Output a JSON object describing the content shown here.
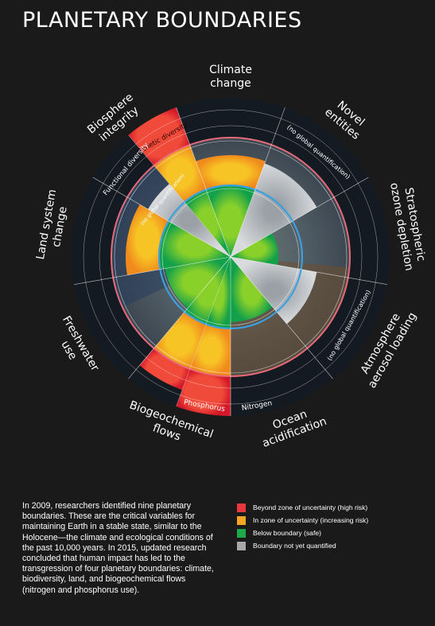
{
  "title": "PLANETARY BOUNDARIES",
  "boundaries": [
    {
      "id": "climate",
      "label_lines": [
        "Climate",
        "change"
      ]
    },
    {
      "id": "novel",
      "label_lines": [
        "Novel",
        "entities"
      ],
      "note": "(no global quantification)"
    },
    {
      "id": "ozone",
      "label_lines": [
        "Stratospheric",
        "ozone depletion"
      ]
    },
    {
      "id": "aerosol",
      "label_lines": [
        "Atmosphere",
        "aerosol loading"
      ],
      "note": "(no global quantification)"
    },
    {
      "id": "ocean",
      "label_lines": [
        "Ocean",
        "acidification"
      ]
    },
    {
      "id": "biogeo",
      "label_lines": [
        "Biogeochemical",
        "flows"
      ],
      "sub": [
        "Phosphorus",
        "Nitrogen"
      ]
    },
    {
      "id": "freshwater",
      "label_lines": [
        "Freshwater",
        "use"
      ]
    },
    {
      "id": "land",
      "label_lines": [
        "Land system",
        "change"
      ]
    },
    {
      "id": "biosphere",
      "label_lines": [
        "Biosphere",
        "integrity"
      ],
      "sub": [
        "Genetic diversity",
        "Functional diversity"
      ],
      "note": "(no global quantification)"
    }
  ],
  "description": "In 2009, researchers identified nine planetary boundaries. These are the critical variables for maintaining Earth in a stable state, similar to the Holocene—the climate and ecological conditions of the past 10,000 years. In 2015, updated research concluded that human impact has led to the transgression of four planetary boundaries: climate, biodiversity, land, and biogeochemical flows (nitrogen and phosphorus use).",
  "legend": [
    {
      "label": "Beyond zone of uncertainty (high risk)",
      "color": "#e8373d"
    },
    {
      "label": "In zone of uncertainty (increasing risk)",
      "color": "#f5a623"
    },
    {
      "label": "Below boundary (safe)",
      "color": "#1ea84a"
    },
    {
      "label": "Boundary not yet quantified",
      "color": "#a8a8a8"
    }
  ],
  "colors": {
    "high_risk": "#e8373d",
    "uncertain": "#f5a623",
    "safe": "#1ea84a",
    "unquantified": "#a8a8a8",
    "boundary_circle": "#3aa0e0",
    "uncertainty_circle": "#e86a7a",
    "background": "#1a1a1a",
    "ring_bg": "#141a22"
  }
}
